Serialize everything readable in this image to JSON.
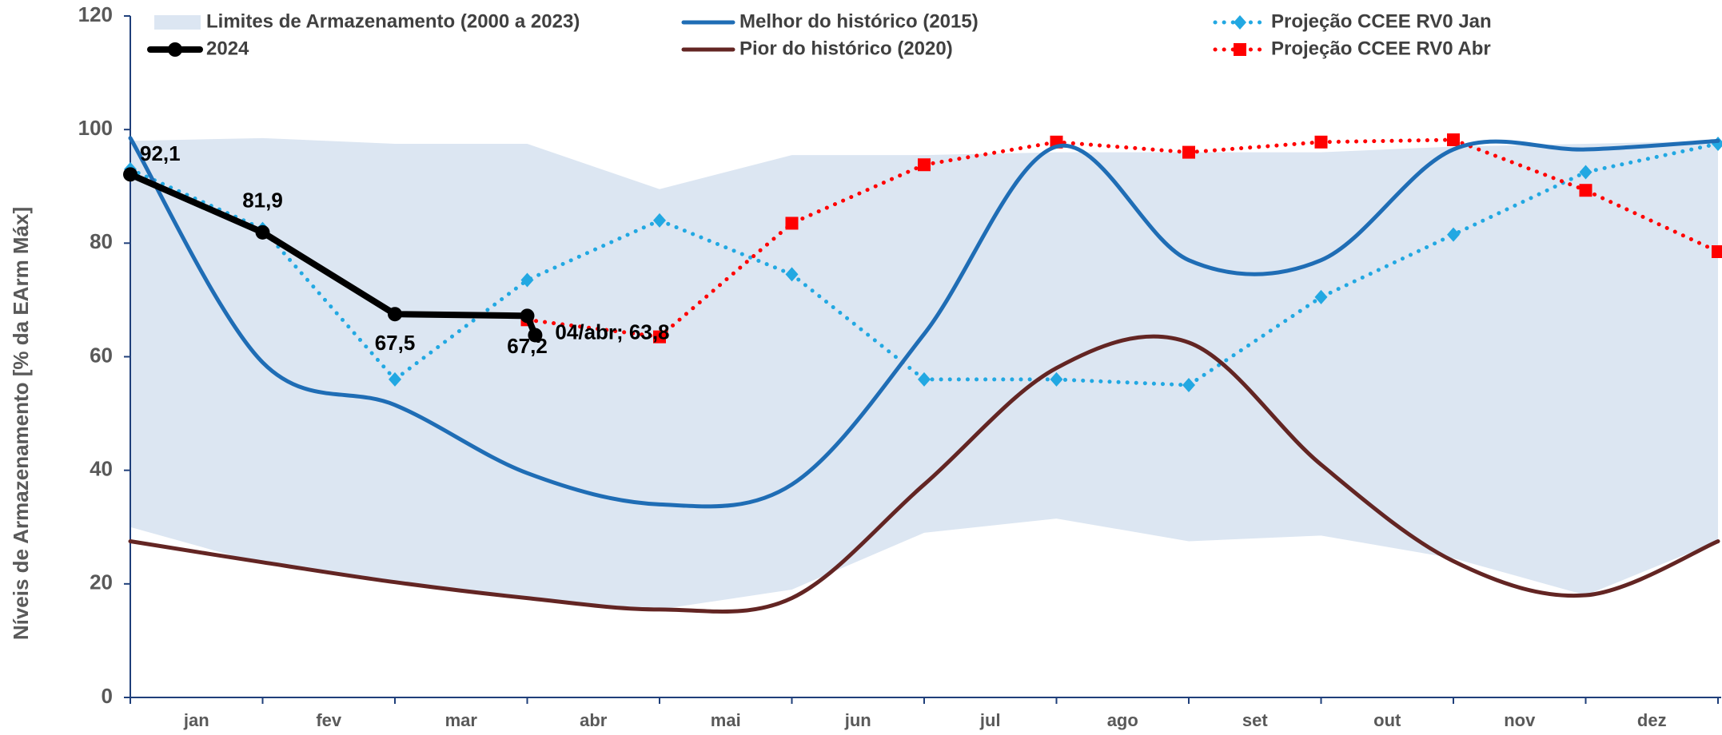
{
  "chart_data": {
    "type": "line",
    "y_label": "Níveis de Armazenamento [% da EArm Máx]",
    "categories": [
      "jan",
      "fev",
      "mar",
      "abr",
      "mai",
      "jun",
      "jul",
      "ago",
      "set",
      "out",
      "nov",
      "dez",
      null
    ],
    "ylim": [
      0,
      120
    ],
    "yticks": [
      0,
      20,
      40,
      60,
      80,
      100,
      120
    ],
    "legend": "top",
    "band": {
      "name": "Limites de Armazenamento (2000 a 2023)",
      "color": "#dce6f2",
      "upper": [
        98,
        98.5,
        97.5,
        97.5,
        89.5,
        95.5,
        95.5,
        96,
        96,
        96,
        97,
        97.5,
        98
      ],
      "lower": [
        30,
        23.5,
        20,
        17.5,
        15.5,
        19,
        29,
        31.5,
        27.5,
        28.5,
        24.5,
        18,
        27.5
      ]
    },
    "series": [
      {
        "name": "2024",
        "color": "#000000",
        "marker": "circle",
        "dash": "solid",
        "smooth": false,
        "width": 8,
        "values": [
          92.1,
          81.9,
          67.5,
          67.2,
          null,
          null,
          null,
          null,
          null,
          null,
          null,
          null,
          null
        ],
        "value_labels": [
          "92,1",
          "81,9",
          "67,5",
          "67,2",
          null,
          null,
          null,
          null,
          null,
          null,
          null,
          null,
          null
        ]
      },
      {
        "name": "Melhor do histórico (2015)",
        "color": "#1f6db5",
        "marker": "none",
        "dash": "solid",
        "smooth": true,
        "width": 5,
        "values": [
          98.5,
          59,
          51.5,
          39.5,
          34,
          37.5,
          64,
          97,
          77,
          77,
          96.5,
          96.5,
          98
        ]
      },
      {
        "name": "Pior do histórico (2020)",
        "color": "#632523",
        "marker": "none",
        "dash": "solid",
        "smooth": true,
        "width": 5,
        "values": [
          27.5,
          23.8,
          20.3,
          17.5,
          15.5,
          17.5,
          37.5,
          58,
          62.5,
          41,
          24,
          18,
          27.5
        ]
      },
      {
        "name": "Projeção CCEE RV0 Jan",
        "color": "#22a8e2",
        "marker": "diamond",
        "dash": "dotted",
        "smooth": false,
        "width": 5,
        "values": [
          93,
          82.5,
          56,
          73.5,
          84,
          74.5,
          56,
          56,
          55,
          70.5,
          81.5,
          92.5,
          97.5
        ]
      },
      {
        "name": "Projeção CCEE RV0 Abr",
        "color": "#ff0000",
        "marker": "square",
        "dash": "dotted",
        "smooth": false,
        "width": 5,
        "values": [
          null,
          null,
          null,
          66.5,
          63.5,
          83.5,
          93.8,
          97.8,
          96,
          97.8,
          98.2,
          89.3,
          78.5
        ]
      }
    ],
    "annotation": {
      "text": "04/abr; 63,8",
      "value": 63.8,
      "x": 3.06
    }
  }
}
